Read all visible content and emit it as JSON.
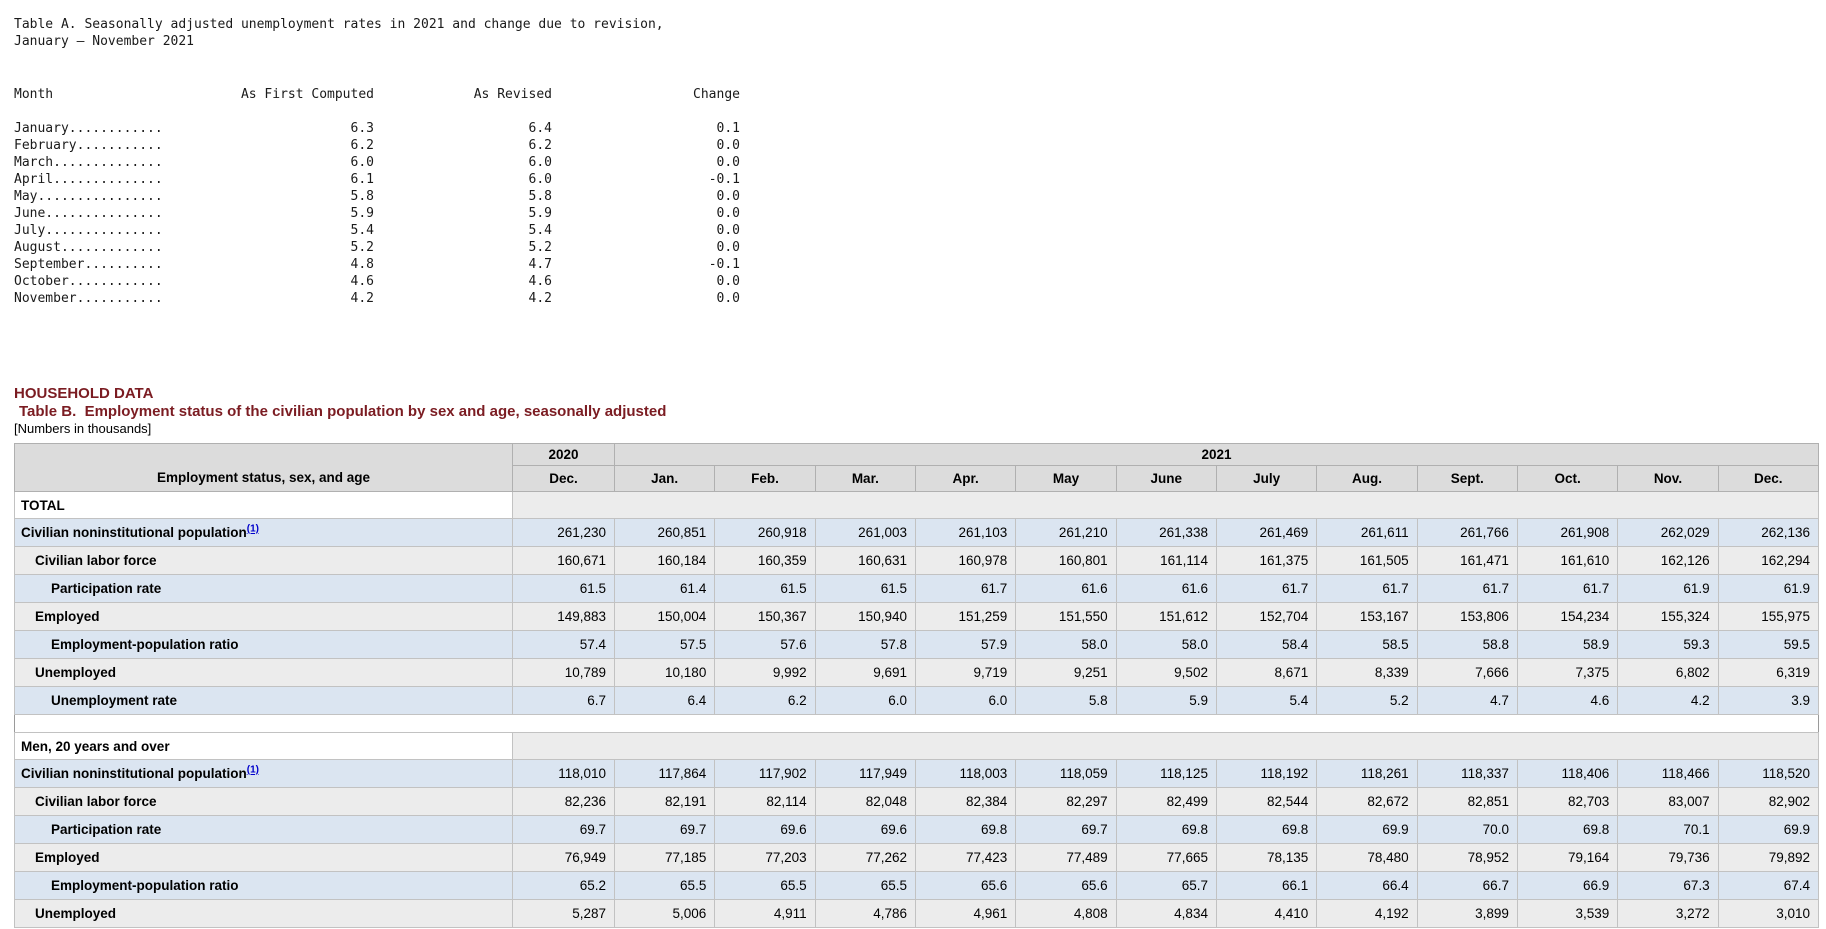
{
  "colors": {
    "heading_maroon": "#7b1c22",
    "row_blue": "#dbe5f1",
    "row_gray": "#ececec",
    "header_gray": "#dcdcdc",
    "footnote_blue": "#0000cc"
  },
  "table_a": {
    "title_line1": "Table A. Seasonally adjusted unemployment rates in 2021 and change due to revision,",
    "title_line2": "January – November 2021",
    "headers": [
      "Month",
      "As First Computed",
      "As Revised",
      "Change"
    ],
    "rows": [
      {
        "month": "January............",
        "as_first_computed": "6.3",
        "as_revised": "6.4",
        "change": "0.1"
      },
      {
        "month": "February...........",
        "as_first_computed": "6.2",
        "as_revised": "6.2",
        "change": "0.0"
      },
      {
        "month": "March..............",
        "as_first_computed": "6.0",
        "as_revised": "6.0",
        "change": "0.0"
      },
      {
        "month": "April..............",
        "as_first_computed": "6.1",
        "as_revised": "6.0",
        "change": "-0.1"
      },
      {
        "month": "May................",
        "as_first_computed": "5.8",
        "as_revised": "5.8",
        "change": "0.0"
      },
      {
        "month": "June...............",
        "as_first_computed": "5.9",
        "as_revised": "5.9",
        "change": "0.0"
      },
      {
        "month": "July...............",
        "as_first_computed": "5.4",
        "as_revised": "5.4",
        "change": "0.0"
      },
      {
        "month": "August.............",
        "as_first_computed": "5.2",
        "as_revised": "5.2",
        "change": "0.0"
      },
      {
        "month": "September..........",
        "as_first_computed": "4.8",
        "as_revised": "4.7",
        "change": "-0.1"
      },
      {
        "month": "October............",
        "as_first_computed": "4.6",
        "as_revised": "4.6",
        "change": "0.0"
      },
      {
        "month": "November...........",
        "as_first_computed": "4.2",
        "as_revised": "4.2",
        "change": "0.0"
      }
    ]
  },
  "household": {
    "section_heading": "HOUSEHOLD DATA",
    "table_b_heading": "Table B.  Employment status of the civilian population by sex and age, seasonally adjusted",
    "units_note": "[Numbers in thousands]",
    "stub_header": "Employment status, sex, and age",
    "year_headers": [
      "2020",
      "2021"
    ],
    "month_headers": [
      "Dec.",
      "Jan.",
      "Feb.",
      "Mar.",
      "Apr.",
      "May",
      "June",
      "July",
      "Aug.",
      "Sept.",
      "Oct.",
      "Nov.",
      "Dec."
    ],
    "sections": [
      {
        "name": "TOTAL",
        "rows": [
          {
            "label": "Civilian noninstitutional population",
            "footnote": "(1)",
            "indent": 0,
            "values": [
              "261,230",
              "260,851",
              "260,918",
              "261,003",
              "261,103",
              "261,210",
              "261,338",
              "261,469",
              "261,611",
              "261,766",
              "261,908",
              "262,029",
              "262,136"
            ]
          },
          {
            "label": "Civilian labor force",
            "indent": 1,
            "values": [
              "160,671",
              "160,184",
              "160,359",
              "160,631",
              "160,978",
              "160,801",
              "161,114",
              "161,375",
              "161,505",
              "161,471",
              "161,610",
              "162,126",
              "162,294"
            ]
          },
          {
            "label": "Participation rate",
            "indent": 2,
            "values": [
              "61.5",
              "61.4",
              "61.5",
              "61.5",
              "61.7",
              "61.6",
              "61.6",
              "61.7",
              "61.7",
              "61.7",
              "61.7",
              "61.9",
              "61.9"
            ]
          },
          {
            "label": "Employed",
            "indent": 1,
            "values": [
              "149,883",
              "150,004",
              "150,367",
              "150,940",
              "151,259",
              "151,550",
              "151,612",
              "152,704",
              "153,167",
              "153,806",
              "154,234",
              "155,324",
              "155,975"
            ]
          },
          {
            "label": "Employment-population ratio",
            "indent": 2,
            "values": [
              "57.4",
              "57.5",
              "57.6",
              "57.8",
              "57.9",
              "58.0",
              "58.0",
              "58.4",
              "58.5",
              "58.8",
              "58.9",
              "59.3",
              "59.5"
            ]
          },
          {
            "label": "Unemployed",
            "indent": 1,
            "values": [
              "10,789",
              "10,180",
              "9,992",
              "9,691",
              "9,719",
              "9,251",
              "9,502",
              "8,671",
              "8,339",
              "7,666",
              "7,375",
              "6,802",
              "6,319"
            ]
          },
          {
            "label": "Unemployment rate",
            "indent": 2,
            "values": [
              "6.7",
              "6.4",
              "6.2",
              "6.0",
              "6.0",
              "5.8",
              "5.9",
              "5.4",
              "5.2",
              "4.7",
              "4.6",
              "4.2",
              "3.9"
            ]
          }
        ]
      },
      {
        "name": "Men, 20 years and over",
        "rows": [
          {
            "label": "Civilian noninstitutional population",
            "footnote": "(1)",
            "indent": 0,
            "values": [
              "118,010",
              "117,864",
              "117,902",
              "117,949",
              "118,003",
              "118,059",
              "118,125",
              "118,192",
              "118,261",
              "118,337",
              "118,406",
              "118,466",
              "118,520"
            ]
          },
          {
            "label": "Civilian labor force",
            "indent": 1,
            "values": [
              "82,236",
              "82,191",
              "82,114",
              "82,048",
              "82,384",
              "82,297",
              "82,499",
              "82,544",
              "82,672",
              "82,851",
              "82,703",
              "83,007",
              "82,902"
            ]
          },
          {
            "label": "Participation rate",
            "indent": 2,
            "values": [
              "69.7",
              "69.7",
              "69.6",
              "69.6",
              "69.8",
              "69.7",
              "69.8",
              "69.8",
              "69.9",
              "70.0",
              "69.8",
              "70.1",
              "69.9"
            ]
          },
          {
            "label": "Employed",
            "indent": 1,
            "values": [
              "76,949",
              "77,185",
              "77,203",
              "77,262",
              "77,423",
              "77,489",
              "77,665",
              "78,135",
              "78,480",
              "78,952",
              "79,164",
              "79,736",
              "79,892"
            ]
          },
          {
            "label": "Employment-population ratio",
            "indent": 2,
            "values": [
              "65.2",
              "65.5",
              "65.5",
              "65.5",
              "65.6",
              "65.6",
              "65.7",
              "66.1",
              "66.4",
              "66.7",
              "66.9",
              "67.3",
              "67.4"
            ]
          },
          {
            "label": "Unemployed",
            "indent": 1,
            "values": [
              "5,287",
              "5,006",
              "4,911",
              "4,786",
              "4,961",
              "4,808",
              "4,834",
              "4,410",
              "4,192",
              "3,899",
              "3,539",
              "3,272",
              "3,010"
            ]
          }
        ]
      }
    ]
  }
}
